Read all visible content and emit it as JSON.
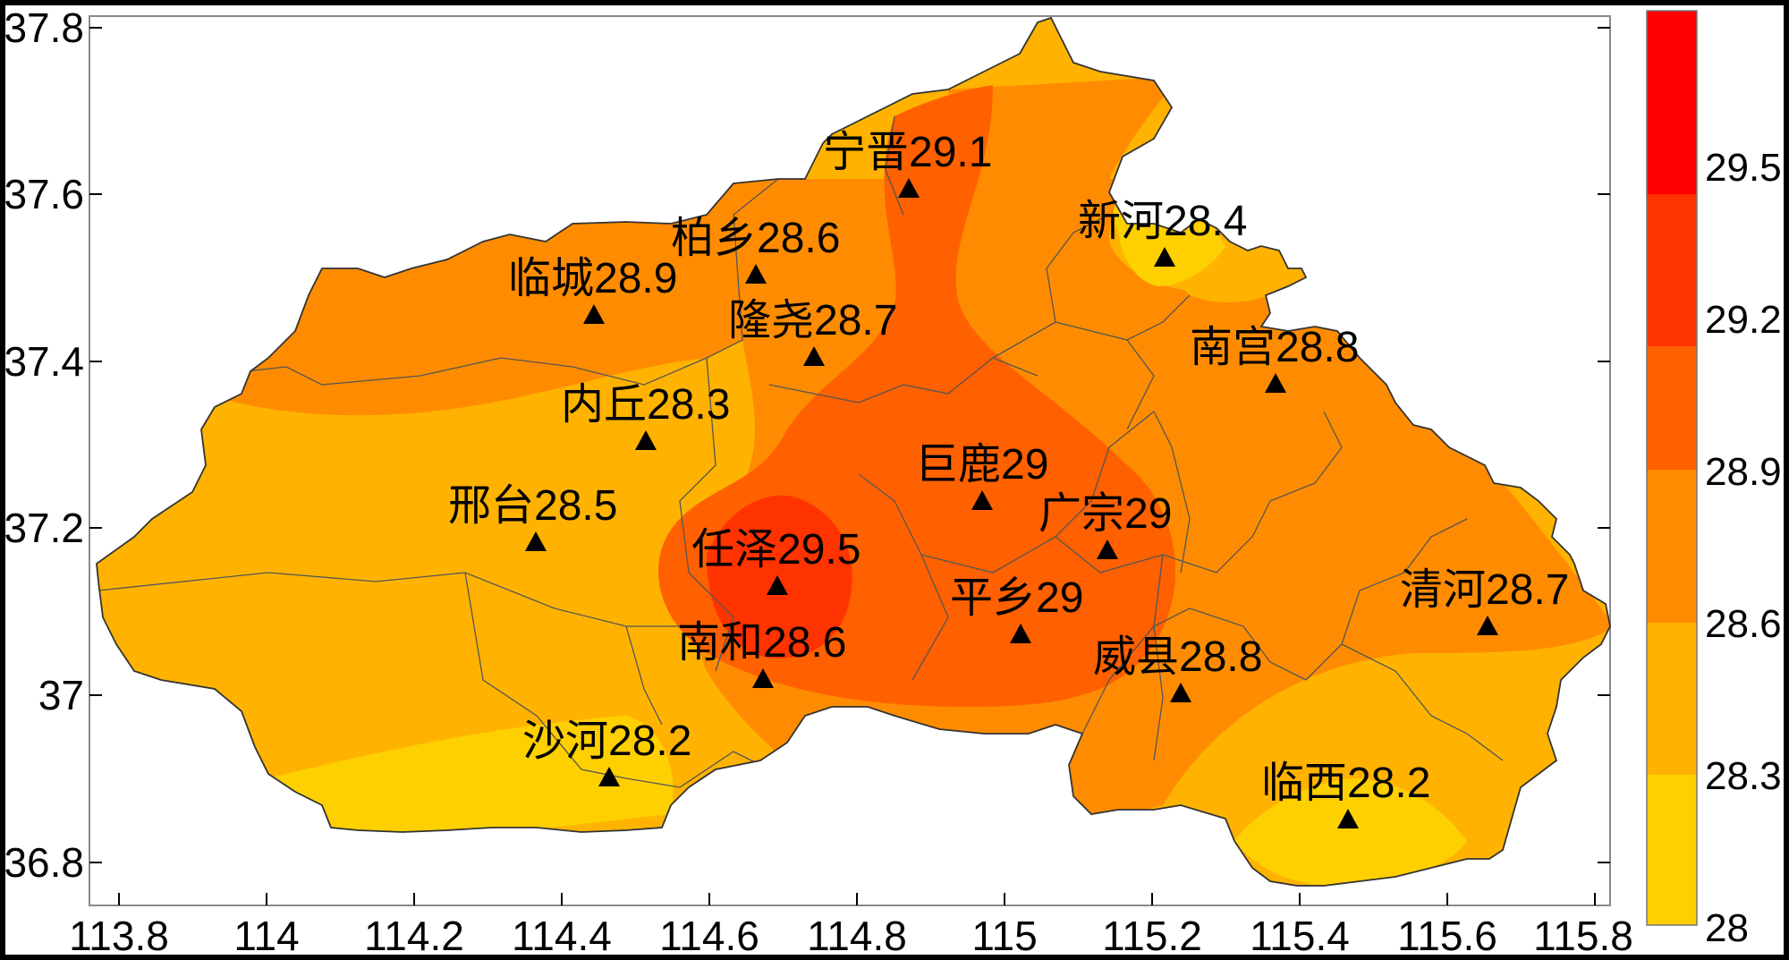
{
  "map": {
    "x_ticks": [
      "113.8",
      "114",
      "114.2",
      "114.4",
      "114.6",
      "114.8",
      "115",
      "115.2",
      "115.4",
      "115.6",
      "115.8"
    ],
    "y_ticks": [
      "37.8",
      "37.6",
      "37.4",
      "37.2",
      "37",
      "36.8"
    ],
    "stations": [
      {
        "name": "宁晋",
        "value": "29.1"
      },
      {
        "name": "新河",
        "value": "28.4"
      },
      {
        "name": "柏乡",
        "value": "28.6"
      },
      {
        "name": "临城",
        "value": "28.9"
      },
      {
        "name": "隆尧",
        "value": "28.7"
      },
      {
        "name": "南宫",
        "value": "28.8"
      },
      {
        "name": "内丘",
        "value": "28.3"
      },
      {
        "name": "巨鹿",
        "value": "29"
      },
      {
        "name": "邢台",
        "value": "28.5"
      },
      {
        "name": "广宗",
        "value": "29"
      },
      {
        "name": "任泽",
        "value": "29.5"
      },
      {
        "name": "平乡",
        "value": "29"
      },
      {
        "name": "清河",
        "value": "28.7"
      },
      {
        "name": "南和",
        "value": "28.6"
      },
      {
        "name": "威县",
        "value": "28.8"
      },
      {
        "name": "沙河",
        "value": "28.2"
      },
      {
        "name": "临西",
        "value": "28.2"
      }
    ]
  },
  "colorbar": {
    "labels": [
      "29.5",
      "29.2",
      "28.9",
      "28.6",
      "28.3",
      "28"
    ],
    "colors": [
      "#FF0000",
      "#FF3300",
      "#FF6000",
      "#FF8C00",
      "#FFB300",
      "#FFD000"
    ]
  },
  "colors": {
    "band_28_0": "#FFD000",
    "band_28_3": "#FFB300",
    "band_28_6": "#FF8C00",
    "band_28_9": "#FF6000",
    "band_29_2": "#FF3300",
    "band_29_5": "#FF0000"
  }
}
